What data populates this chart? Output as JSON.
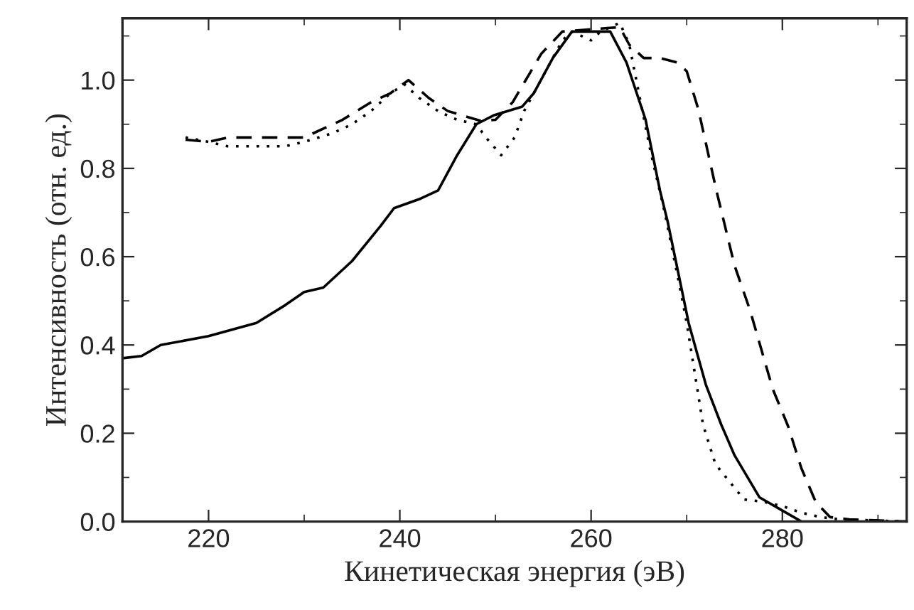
{
  "chart_data": {
    "type": "line",
    "xlabel": "Кинетическая энергия (эВ)",
    "ylabel": "Интенсивность (отн. ед.)",
    "xlim": [
      211,
      293
    ],
    "ylim": [
      0,
      1.14
    ],
    "xticks": [
      220,
      {
        "value": 230,
        "label": null
      },
      240,
      {
        "value": 250,
        "label": null
      },
      260,
      {
        "value": 270,
        "label": null
      },
      280,
      {
        "value": 290,
        "label": null
      }
    ],
    "yticks": [
      {
        "value": 0,
        "label": "0.0"
      },
      {
        "value": 0.1,
        "label": null
      },
      0.2,
      {
        "value": 0.3,
        "label": null
      },
      0.4,
      {
        "value": 0.5,
        "label": null
      },
      0.6,
      {
        "value": 0.7,
        "label": null
      },
      0.8,
      {
        "value": 0.9,
        "label": null
      },
      {
        "value": 1.0,
        "label": "1.0"
      },
      {
        "value": 1.1,
        "label": null
      }
    ],
    "grid": false,
    "legend": false,
    "series": [
      {
        "color": "#000000",
        "line_style": "solid",
        "x": [
          211,
          213,
          215,
          220,
          225,
          228,
          230,
          232,
          235,
          238,
          239.4,
          242,
          244,
          246,
          248,
          249.8,
          252.8,
          254,
          256,
          258,
          260,
          262,
          263.7,
          265.7,
          267.2,
          268,
          270.2,
          272,
          273.6,
          275,
          277.6,
          280,
          282,
          293
        ],
        "values": [
          0.37,
          0.375,
          0.4,
          0.42,
          0.45,
          0.49,
          0.52,
          0.53,
          0.59,
          0.67,
          0.71,
          0.73,
          0.75,
          0.83,
          0.9,
          0.92,
          0.94,
          0.97,
          1.05,
          1.11,
          null,
          1.11,
          1.04,
          0.91,
          0.75,
          0.68,
          0.45,
          0.31,
          0.22,
          0.15,
          0.055,
          0.025,
          0.0,
          0.0
        ]
      },
      {
        "color": "#000000",
        "line_style": "dashed",
        "x": [
          217.6,
          220,
          222,
          225,
          230,
          234,
          237,
          239,
          240.9,
          243,
          245,
          248.4,
          250,
          251.8,
          254.8,
          257,
          259,
          261,
          263,
          264,
          265.5,
          267.2,
          269,
          270,
          271.2,
          273.1,
          275,
          276.6,
          279,
          280.6,
          282,
          283.5,
          285,
          287,
          293
        ],
        "values": [
          0.865,
          0.86,
          0.87,
          0.87,
          0.87,
          0.91,
          0.95,
          0.97,
          1.0,
          0.96,
          0.93,
          0.908,
          0.91,
          0.95,
          1.06,
          1.11,
          null,
          null,
          1.12,
          1.08,
          1.05,
          1.05,
          1.04,
          1.02,
          0.935,
          0.75,
          0.58,
          0.48,
          0.3,
          0.216,
          0.12,
          0.044,
          0.01,
          0.005,
          0.0
        ]
      },
      {
        "color": "#000000",
        "line_style": "dotted",
        "x": [
          217.6,
          220,
          222,
          225,
          228,
          230,
          233,
          235,
          237,
          239,
          240.5,
          242,
          244,
          246,
          248,
          249,
          250.6,
          252,
          253,
          255,
          257,
          258,
          259,
          260,
          261,
          262,
          263,
          264,
          265,
          266.2,
          267.7,
          269.2,
          270,
          271.7,
          273,
          274.6,
          276,
          278,
          280,
          282,
          284,
          286,
          293
        ],
        "values": [
          0.87,
          0.86,
          0.85,
          0.85,
          0.85,
          0.86,
          0.88,
          0.9,
          0.93,
          0.97,
          0.99,
          0.96,
          0.93,
          0.91,
          0.9,
          0.87,
          0.83,
          0.87,
          0.93,
          1.01,
          1.09,
          1.11,
          1.1,
          1.09,
          1.11,
          null,
          1.13,
          1.08,
          0.97,
          0.84,
          0.7,
          0.54,
          0.45,
          0.22,
          0.13,
          0.087,
          0.05,
          0.045,
          0.035,
          0.02,
          0.01,
          0.005,
          0.0
        ]
      }
    ]
  }
}
